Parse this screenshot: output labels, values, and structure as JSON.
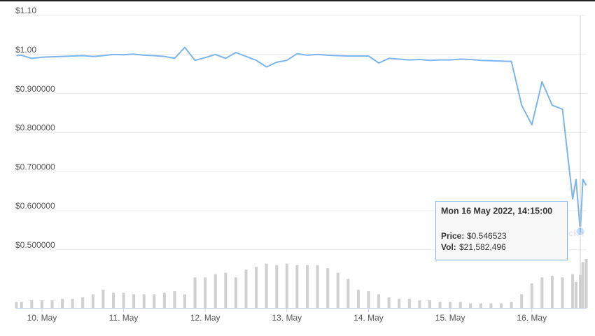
{
  "chart_data": {
    "type": "line",
    "x": [
      "2022-05-09 16:30",
      "2022-05-09 18:00",
      "2022-05-09 21:00",
      "2022-05-10 00:00",
      "2022-05-10 03:00",
      "2022-05-10 06:00",
      "2022-05-10 09:00",
      "2022-05-10 12:00",
      "2022-05-10 15:00",
      "2022-05-10 18:00",
      "2022-05-10 21:00",
      "2022-05-11 00:00",
      "2022-05-11 03:00",
      "2022-05-11 06:00",
      "2022-05-11 09:00",
      "2022-05-11 12:00",
      "2022-05-11 15:00",
      "2022-05-11 18:00",
      "2022-05-11 21:00",
      "2022-05-12 00:00",
      "2022-05-12 03:00",
      "2022-05-12 06:00",
      "2022-05-12 09:00",
      "2022-05-12 12:00",
      "2022-05-12 15:00",
      "2022-05-12 18:00",
      "2022-05-12 21:00",
      "2022-05-13 00:00",
      "2022-05-13 03:00",
      "2022-05-13 06:00",
      "2022-05-13 09:00",
      "2022-05-13 12:00",
      "2022-05-13 15:00",
      "2022-05-13 18:00",
      "2022-05-13 21:00",
      "2022-05-14 00:00",
      "2022-05-14 03:00",
      "2022-05-14 06:00",
      "2022-05-14 09:00",
      "2022-05-14 12:00",
      "2022-05-14 15:00",
      "2022-05-14 18:00",
      "2022-05-14 21:00",
      "2022-05-15 00:00",
      "2022-05-15 03:00",
      "2022-05-15 06:00",
      "2022-05-15 09:00",
      "2022-05-15 12:00",
      "2022-05-15 15:00",
      "2022-05-15 18:00",
      "2022-05-15 21:00",
      "2022-05-16 00:00",
      "2022-05-16 03:00",
      "2022-05-16 06:00",
      "2022-05-16 09:00",
      "2022-05-16 12:00",
      "2022-05-16 13:00",
      "2022-05-16 14:15",
      "2022-05-16 15:00",
      "2022-05-16 16:00"
    ],
    "values": [
      0.997,
      0.998,
      0.99,
      0.993,
      0.994,
      0.995,
      0.996,
      0.997,
      0.995,
      0.997,
      1.0,
      0.999,
      1.001,
      0.998,
      0.997,
      0.995,
      0.99,
      1.018,
      0.985,
      0.992,
      1.0,
      0.99,
      1.005,
      0.995,
      0.985,
      0.968,
      0.98,
      0.985,
      1.002,
      0.998,
      1.0,
      0.998,
      0.997,
      0.996,
      0.996,
      0.996,
      0.978,
      0.99,
      0.988,
      0.986,
      0.987,
      0.985,
      0.986,
      0.986,
      0.988,
      0.987,
      0.985,
      0.984,
      0.983,
      0.982,
      0.87,
      0.82,
      0.93,
      0.87,
      0.86,
      0.63,
      0.68,
      0.546523,
      0.68,
      0.665
    ],
    "volumes": [
      4000000,
      4000000,
      5000000,
      5000000,
      5000000,
      6000000,
      6000000,
      7000000,
      9000000,
      12000000,
      10000000,
      10000000,
      9000000,
      9000000,
      9000000,
      10000000,
      11000000,
      9000000,
      20000000,
      20000000,
      22000000,
      23000000,
      20000000,
      25000000,
      27000000,
      29000000,
      28000000,
      29000000,
      28000000,
      28000000,
      28000000,
      26000000,
      23000000,
      19000000,
      12000000,
      11000000,
      9000000,
      7000000,
      6000000,
      6000000,
      5000000,
      5000000,
      4000000,
      4000000,
      4000000,
      3000000,
      3000000,
      3000000,
      3000000,
      4000000,
      9000000,
      16000000,
      20000000,
      21000000,
      20000000,
      22000000,
      17000000,
      21582496,
      30000000,
      32000000
    ],
    "color": "#7cb5ec",
    "volume_color": "#d0d0d0",
    "xlim": [
      "2022-05-09 16:12",
      "2022-05-16 16:06"
    ],
    "xticks": [
      {
        "value": "2022-05-10 00:00",
        "label": "10. May"
      },
      {
        "value": "2022-05-11 00:00",
        "label": "11. May"
      },
      {
        "value": "2022-05-12 00:00",
        "label": "12. May"
      },
      {
        "value": "2022-05-13 00:00",
        "label": "13. May"
      },
      {
        "value": "2022-05-14 00:00",
        "label": "14. May"
      },
      {
        "value": "2022-05-15 00:00",
        "label": "15. May"
      },
      {
        "value": "2022-05-16 00:00",
        "label": "16. May"
      }
    ],
    "ylim": [
      0.34,
      1.1
    ],
    "yticks": [
      {
        "value": 1.1,
        "label": "$1.10"
      },
      {
        "value": 1.0,
        "label": "$1.00"
      },
      {
        "value": 0.9,
        "label": "$0.900000"
      },
      {
        "value": 0.8,
        "label": "$0.800000"
      },
      {
        "value": 0.7,
        "label": "$0.700000"
      },
      {
        "value": 0.6,
        "label": "$0.600000"
      },
      {
        "value": 0.5,
        "label": "$0.500000"
      }
    ],
    "grid": true,
    "watermark": "CoinGecko",
    "highlight_index": 57,
    "tooltip": {
      "date": "Mon 16 May 2022, 14:15:00",
      "price_label": "Price:",
      "price": "$0.546523",
      "vol_label": "Vol:",
      "vol": "$21,582,496"
    }
  }
}
